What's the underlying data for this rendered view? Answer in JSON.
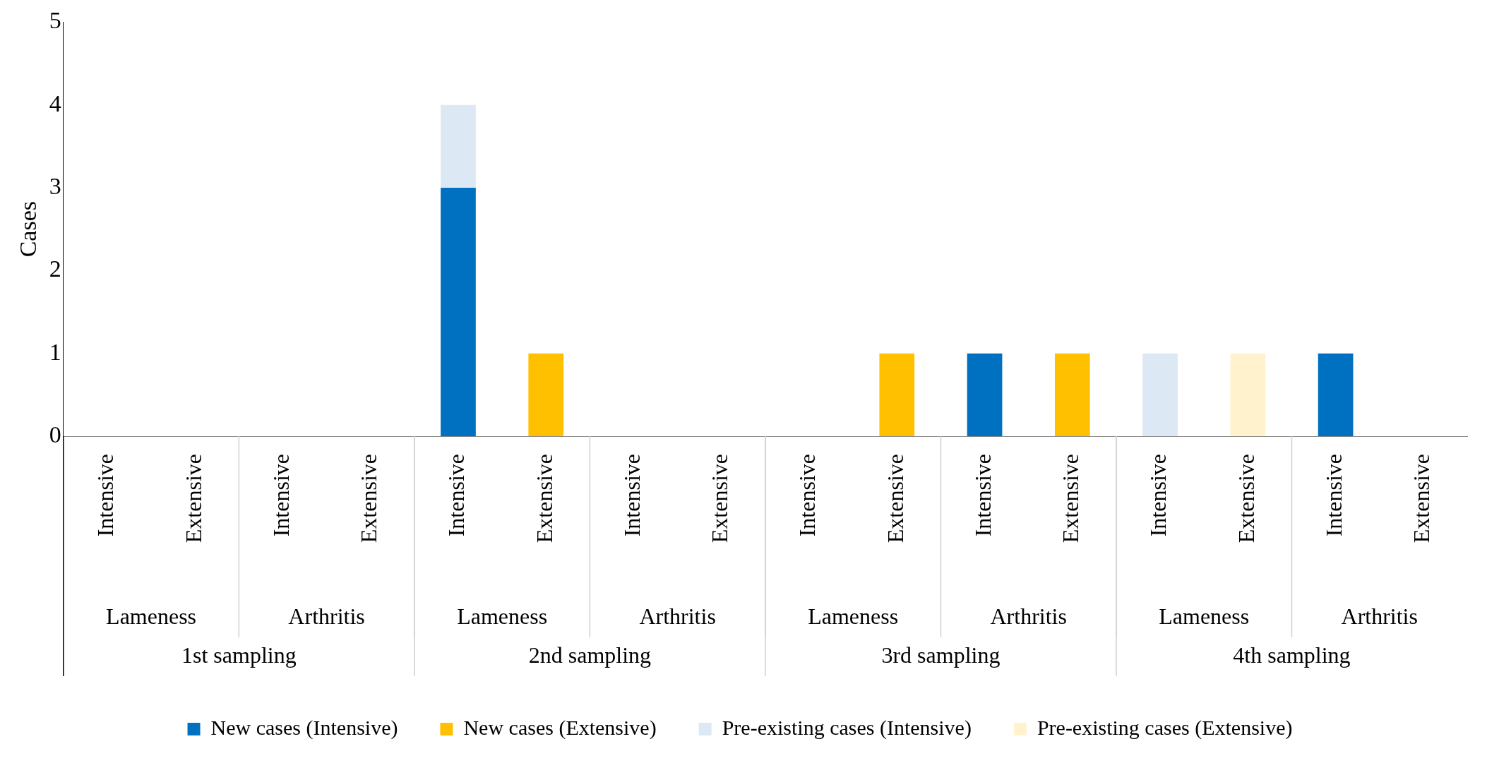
{
  "chart_data": {
    "type": "bar",
    "stacked": true,
    "ylabel": "Cases",
    "ylim": [
      0,
      5
    ],
    "yticks": [
      0,
      1,
      2,
      3,
      4,
      5
    ],
    "grid": false,
    "legend": "bottom",
    "categories": [
      "Intensive",
      "Extensive",
      "Intensive",
      "Extensive",
      "Intensive",
      "Extensive",
      "Intensive",
      "Extensive",
      "Intensive",
      "Extensive",
      "Intensive",
      "Extensive",
      "Intensive",
      "Extensive",
      "Intensive",
      "Extensive"
    ],
    "annotations": [
      "Lameness",
      "Arthritis",
      "Lameness",
      "Arthritis",
      "Lameness",
      "Arthritis",
      "Lameness",
      "Arthritis",
      "1st sampling",
      "2nd sampling",
      "3rd sampling",
      "4th sampling"
    ],
    "series": [
      {
        "name": "New cases (Intensive)",
        "color": "#0070c0",
        "values": [
          0,
          null,
          0,
          null,
          3,
          null,
          0,
          null,
          0,
          null,
          1,
          null,
          0,
          null,
          1,
          null
        ]
      },
      {
        "name": "New cases (Extensive)",
        "color": "#ffc000",
        "values": [
          null,
          0,
          null,
          0,
          null,
          1,
          null,
          0,
          null,
          1,
          null,
          1,
          null,
          0,
          null,
          0
        ]
      },
      {
        "name": "Pre-existing cases (Intensive)",
        "color": "#dde8f5",
        "values": [
          0,
          null,
          0,
          null,
          1,
          null,
          0,
          null,
          0,
          null,
          0,
          null,
          1,
          null,
          0,
          null
        ]
      },
      {
        "name": "Pre-existing cases (Extensive)",
        "color": "#fff2cc",
        "values": [
          null,
          0,
          null,
          0,
          null,
          0,
          null,
          0,
          null,
          0,
          null,
          0,
          null,
          1,
          null,
          0
        ]
      }
    ]
  }
}
